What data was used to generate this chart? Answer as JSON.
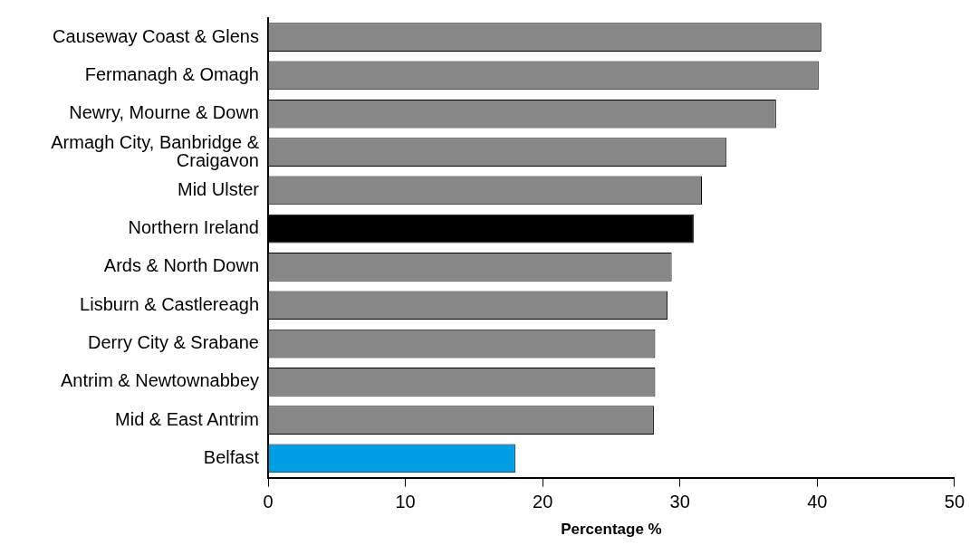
{
  "chart_data": {
    "type": "bar",
    "orientation": "horizontal",
    "xlabel": "Percentage %",
    "categories": [
      "Causeway Coast & Glens",
      "Fermanagh & Omagh",
      "Newry, Mourne & Down",
      "Armagh City, Banbridge & Craigavon",
      "Mid Ulster",
      "Northern Ireland",
      "Ards & North Down",
      "Lisburn & Castlereagh",
      "Derry City & Srabane",
      "Antrim & Newtownabbey",
      "Mid & East Antrim",
      "Belfast"
    ],
    "values": [
      40.3,
      40.1,
      37.0,
      33.4,
      31.6,
      31.0,
      29.4,
      29.1,
      28.2,
      28.2,
      28.1,
      18.0
    ],
    "colors": [
      "#878787",
      "#878787",
      "#878787",
      "#878787",
      "#878787",
      "#000000",
      "#878787",
      "#878787",
      "#878787",
      "#878787",
      "#878787",
      "#009fe3"
    ],
    "xlim": [
      0,
      50
    ],
    "xticks": [
      0,
      10,
      20,
      30,
      40,
      50
    ],
    "grid": false,
    "legend": false
  }
}
